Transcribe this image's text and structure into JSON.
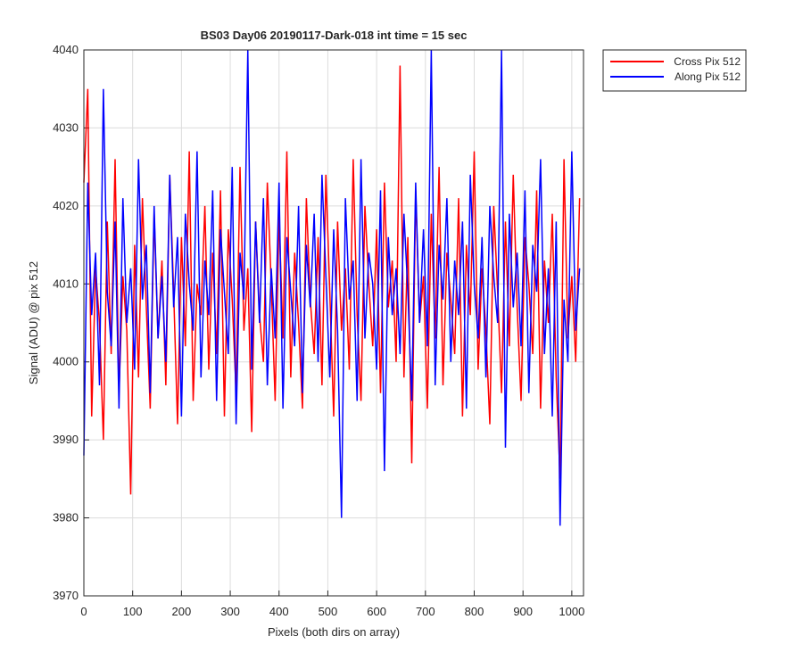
{
  "chart_data": {
    "type": "line",
    "title": "BS03 Day06 20190117-Dark-018 int time = 15 sec",
    "xlabel": "Pixels (both dirs on array)",
    "ylabel": "Signal (ADU) @ pix 512",
    "x": [
      0,
      8,
      16,
      24,
      32,
      40,
      48,
      56,
      64,
      72,
      80,
      88,
      96,
      104,
      112,
      120,
      128,
      136,
      144,
      152,
      160,
      168,
      176,
      184,
      192,
      200,
      208,
      216,
      224,
      232,
      240,
      248,
      256,
      264,
      272,
      280,
      288,
      296,
      304,
      312,
      320,
      328,
      336,
      344,
      352,
      360,
      368,
      376,
      384,
      392,
      400,
      408,
      416,
      424,
      432,
      440,
      448,
      456,
      464,
      472,
      480,
      488,
      496,
      504,
      512,
      520,
      528,
      536,
      544,
      552,
      560,
      568,
      576,
      584,
      592,
      600,
      608,
      616,
      624,
      632,
      640,
      648,
      656,
      664,
      672,
      680,
      688,
      696,
      704,
      712,
      720,
      728,
      736,
      744,
      752,
      760,
      768,
      776,
      784,
      792,
      800,
      808,
      816,
      824,
      832,
      840,
      848,
      856,
      864,
      872,
      880,
      888,
      896,
      904,
      912,
      920,
      928,
      936,
      944,
      952,
      960,
      968,
      976,
      984,
      992,
      1000,
      1008,
      1016
    ],
    "series": [
      {
        "name": "Cross Pix 512",
        "color": "#ff0000",
        "values": [
          4023,
          4035,
          3993,
          4012,
          4005,
          3990,
          4018,
          4001,
          4026,
          3996,
          4011,
          4004,
          3983,
          4015,
          3998,
          4021,
          4007,
          3994,
          4019,
          4003,
          4013,
          3997,
          4024,
          4009,
          3992,
          4016,
          4002,
          4027,
          3995,
          4010,
          4006,
          4020,
          3999,
          4014,
          4001,
          4022,
          3993,
          4017,
          4008,
          3996,
          4025,
          4004,
          4012,
          3991,
          4018,
          4006,
          4000,
          4023,
          4010,
          3995,
          4019,
          4003,
          4027,
          3998,
          4014,
          4005,
          3994,
          4021,
          4008,
          4001,
          4016,
          3997,
          4024,
          4009,
          3993,
          4018,
          4004,
          4012,
          3999,
          4026,
          4006,
          3995,
          4020,
          4010,
          4002,
          4017,
          3996,
          4023,
          4007,
          4013,
          4000,
          4038,
          3998,
          4016,
          3987,
          4022,
          4005,
          4011,
          3994,
          4019,
          4003,
          4025,
          3997,
          4014,
          4008,
          4001,
          4021,
          3993,
          4015,
          4006,
          4027,
          3999,
          4012,
          4004,
          3992,
          4020,
          4009,
          3996,
          4018,
          4002,
          4024,
          4007,
          3995,
          4016,
          4010,
          4001,
          4022,
          3994,
          4013,
          4005,
          4019,
          3998,
          3985,
          4026,
          4003,
          4011,
          4000,
          4021
        ]
      },
      {
        "name": "Along Pix 512",
        "color": "#0000ff",
        "values": [
          3988,
          4023,
          4006,
          4014,
          3997,
          4035,
          4009,
          4002,
          4018,
          3994,
          4021,
          4005,
          4012,
          3999,
          4026,
          4008,
          4015,
          3996,
          4020,
          4003,
          4011,
          4000,
          4024,
          4007,
          4016,
          3993,
          4019,
          4010,
          4004,
          4027,
          3998,
          4013,
          4006,
          4022,
          3995,
          4017,
          4009,
          4001,
          4025,
          3992,
          4014,
          4008,
          4040,
          3999,
          4018,
          4005,
          4021,
          3997,
          4012,
          4003,
          4023,
          3994,
          4016,
          4009,
          4002,
          4020,
          3996,
          4015,
          4007,
          4019,
          4000,
          4024,
          4011,
          3998,
          4017,
          4004,
          3980,
          4021,
          4008,
          4013,
          3995,
          4026,
          4003,
          4014,
          4010,
          3999,
          4022,
          3986,
          4016,
          4006,
          4012,
          4001,
          4019,
          4009,
          3995,
          4023,
          4005,
          4017,
          4002,
          4040,
          3997,
          4015,
          4008,
          4021,
          4000,
          4013,
          4006,
          4018,
          3994,
          4024,
          4010,
          4003,
          4016,
          3998,
          4020,
          4011,
          4005,
          4040,
          3989,
          4019,
          4007,
          4014,
          4002,
          4022,
          3996,
          4015,
          4009,
          4026,
          4001,
          4012,
          3993,
          4018,
          3979,
          4008,
          4000,
          4027,
          4004,
          4012
        ]
      }
    ],
    "xlim": [
      0,
      1024
    ],
    "ylim": [
      3970,
      4040
    ],
    "xticks": [
      0,
      100,
      200,
      300,
      400,
      500,
      600,
      700,
      800,
      900,
      1000
    ],
    "yticks": [
      3970,
      3980,
      3990,
      4000,
      4010,
      4020,
      4030,
      4040
    ],
    "grid": true,
    "legend": "northeast-outside"
  }
}
